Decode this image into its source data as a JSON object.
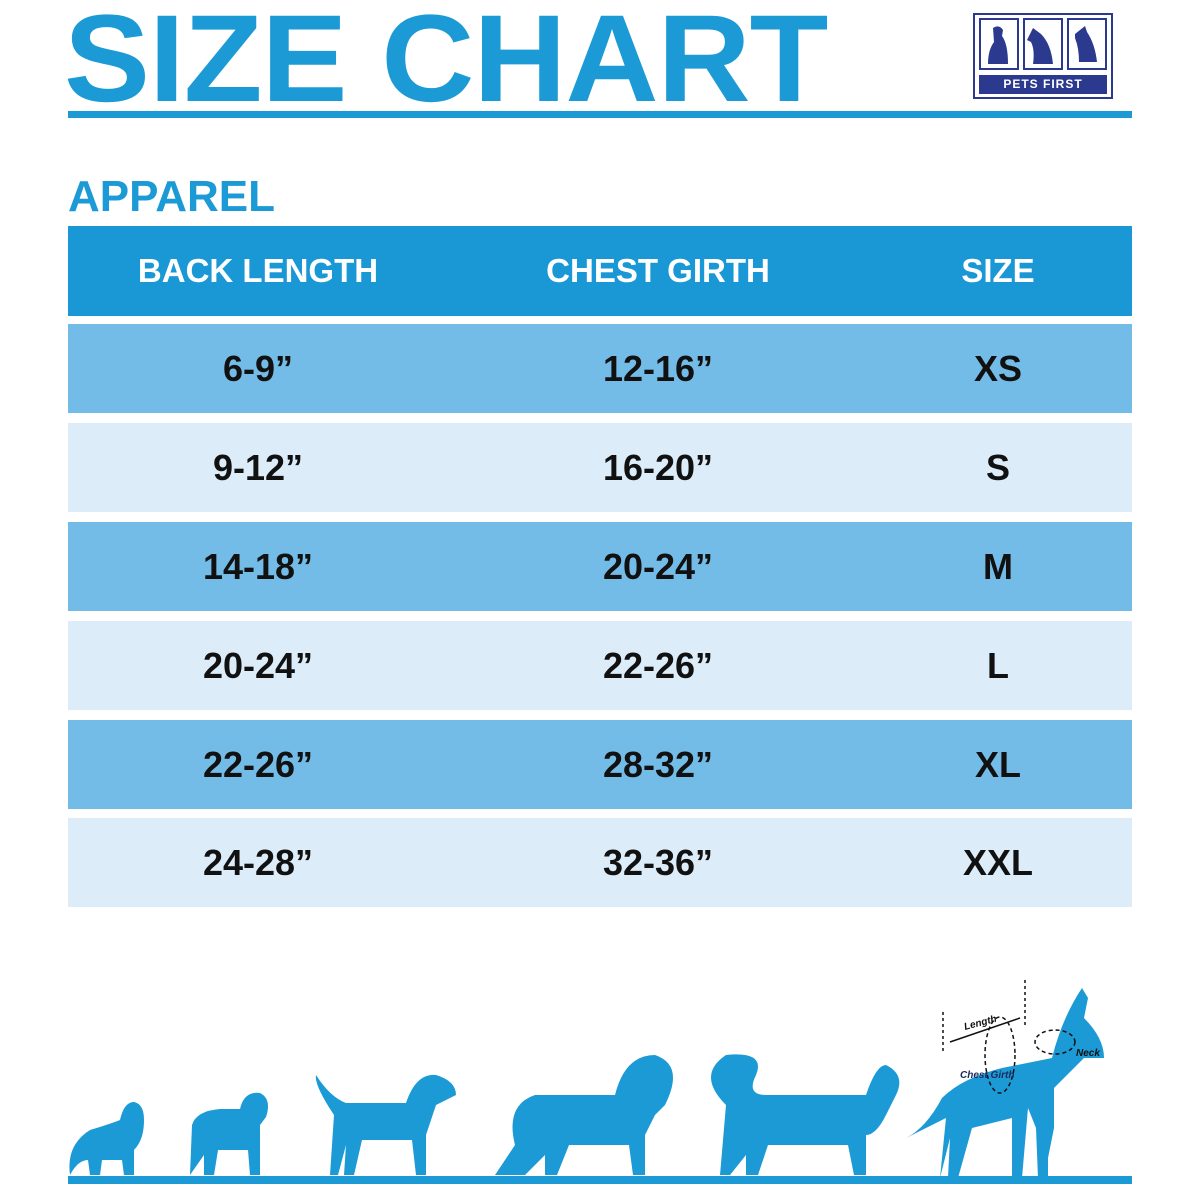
{
  "title": "SIZE CHART",
  "logo": {
    "text": "PETS FIRST",
    "color": "#2b3a8f"
  },
  "section": "APPAREL",
  "table": {
    "headers": [
      "BACK LENGTH",
      "CHEST GIRTH",
      "SIZE"
    ],
    "rows": [
      [
        "6-9”",
        "12-16”",
        "XS"
      ],
      [
        "9-12”",
        "16-20”",
        "S"
      ],
      [
        "14-18”",
        "20-24”",
        "M"
      ],
      [
        "20-24”",
        "22-26”",
        "L"
      ],
      [
        "22-26”",
        "28-32”",
        "XL"
      ],
      [
        "24-28”",
        "32-36”",
        "XXL"
      ]
    ]
  },
  "diagram": {
    "length": "Length",
    "chest_girth": "Chest Girth",
    "neck": "Neck"
  },
  "colors": {
    "accent": "#1b9ad6",
    "row_dark": "#74bce8",
    "row_light": "#dcecf9"
  }
}
